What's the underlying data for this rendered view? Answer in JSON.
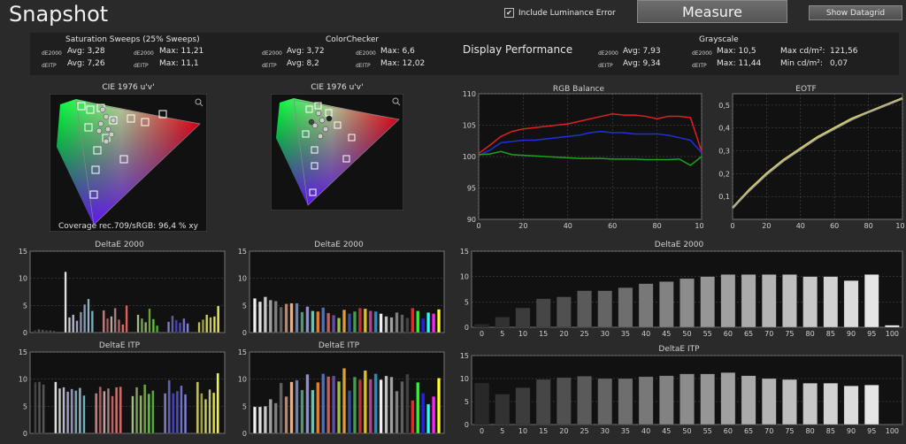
{
  "title": "Snapshot",
  "controls": {
    "luminance_checked": true,
    "luminance_label": "Include Luminance Error",
    "measure_label": "Measure",
    "datagrid_label": "Show Datagrid"
  },
  "stats": {
    "sat": {
      "title": "Saturation Sweeps (25% Sweeps)",
      "r1": {
        "m": "dE2000",
        "avg": "Avg: 3,28",
        "mm": "dE2000",
        "max": "Max: 11,21"
      },
      "r2": {
        "m": "dEITP",
        "avg": "Avg: 7,26",
        "mm": "dEITP",
        "max": "Max: 11,1"
      }
    },
    "cc": {
      "title": "ColorChecker",
      "r1": {
        "m": "dE2000",
        "avg": "Avg: 3,72",
        "mm": "dE2000",
        "max": "Max: 6,6"
      },
      "r2": {
        "m": "dEITP",
        "avg": "Avg: 8,2",
        "mm": "dEITP",
        "max": "Max: 12,02"
      }
    },
    "dp": "Display Performance",
    "gs": {
      "title": "Grayscale",
      "r1": {
        "m": "dE2000",
        "avg": "Avg: 7,93",
        "mm": "dE2000",
        "max": "Max: 10,5",
        "cd": "Max cd/m²:",
        "cdv": "121,56"
      },
      "r2": {
        "m": "dEITP",
        "avg": "Avg: 9,34",
        "mm": "dEITP",
        "max": "Max: 11,44",
        "cd": "Min cd/m²:",
        "cdv": "0,07"
      }
    }
  },
  "cie": {
    "title": "CIE 1976 u'v'",
    "coverage": "Coverage rec.709/sRGB:  96,4 % xy"
  },
  "chart_data": [
    {
      "type": "line",
      "title": "RGB Balance",
      "xlim": [
        0,
        100
      ],
      "ylim": [
        90,
        110
      ],
      "xticks": [
        "0",
        "20",
        "40",
        "60",
        "80",
        "100"
      ],
      "yticks": [
        "90",
        "95",
        "100",
        "105",
        "110"
      ],
      "x": [
        0,
        5,
        10,
        15,
        20,
        25,
        30,
        35,
        40,
        45,
        50,
        55,
        60,
        65,
        70,
        75,
        80,
        85,
        90,
        95,
        100
      ],
      "series": [
        {
          "color": "#e02020",
          "values": [
            100.5,
            101.8,
            103.2,
            104.0,
            104.4,
            104.6,
            104.8,
            105.0,
            105.2,
            105.6,
            106.0,
            106.4,
            106.8,
            106.6,
            106.6,
            106.4,
            106.0,
            106.4,
            106.4,
            106.2,
            100.8
          ]
        },
        {
          "color": "#2030e0",
          "values": [
            100.2,
            101.0,
            102.2,
            102.4,
            102.6,
            102.6,
            102.8,
            103.0,
            103.2,
            103.4,
            103.8,
            104.0,
            103.8,
            103.8,
            103.6,
            103.6,
            103.6,
            103.4,
            103.0,
            102.6,
            100.6
          ]
        },
        {
          "color": "#20a020",
          "values": [
            100.3,
            100.4,
            100.8,
            100.3,
            100.2,
            100.1,
            100.0,
            99.9,
            99.8,
            99.7,
            99.7,
            99.7,
            99.6,
            99.6,
            99.6,
            99.5,
            99.5,
            99.5,
            99.6,
            98.6,
            100.0
          ]
        }
      ]
    },
    {
      "type": "line",
      "title": "EOTF",
      "xlim": [
        0,
        100
      ],
      "ylim": [
        0,
        0.55
      ],
      "xticks": [
        "0",
        "20",
        "40",
        "60",
        "80",
        "100"
      ],
      "yticks": [
        "0,1",
        "0,2",
        "0,3",
        "0,4",
        "0,5"
      ],
      "x": [
        0,
        10,
        20,
        30,
        40,
        50,
        60,
        70,
        80,
        90,
        100
      ],
      "series": [
        {
          "color": "#d8d060",
          "values": [
            0.05,
            0.13,
            0.2,
            0.26,
            0.31,
            0.36,
            0.4,
            0.44,
            0.47,
            0.5,
            0.53
          ]
        },
        {
          "color": "#a0a0a0",
          "values": [
            0.05,
            0.125,
            0.195,
            0.255,
            0.305,
            0.355,
            0.395,
            0.435,
            0.468,
            0.498,
            0.527
          ]
        }
      ]
    },
    {
      "type": "bar",
      "title": "DeltaE 2000",
      "ylim": [
        0,
        15
      ],
      "yticks": [
        "0",
        "5",
        "10",
        "15"
      ],
      "groups": [
        {
          "colors": [
            "#444",
            "#555",
            "#555",
            "#555",
            "#555",
            "#555"
          ],
          "values": [
            0.4,
            0.6,
            0.5,
            0.4,
            0.4,
            0.3
          ]
        },
        {
          "colors": [
            "#e0e0e0",
            "#c8c8c8",
            "#b8b8d0",
            "#a0a0c0",
            "#9090b0",
            "#80a0b0",
            "#90b0c0",
            "#70b0c0"
          ],
          "values": [
            11.2,
            2.8,
            3.3,
            2.2,
            3.8,
            5.2,
            6.2,
            4.0
          ]
        },
        {
          "colors": [
            "#c08080",
            "#a06060",
            "#c0a0a0",
            "#a08080",
            "#c06060",
            "#d07070",
            "#e06060"
          ],
          "values": [
            4.1,
            2.6,
            3.0,
            4.5,
            2.4,
            1.5,
            5.0
          ]
        },
        {
          "colors": [
            "#a0c080",
            "#80a060",
            "#90b070",
            "#70a040",
            "#60c040",
            "#50b030"
          ],
          "values": [
            3.3,
            2.6,
            1.9,
            4.4,
            2.5,
            1.3
          ]
        },
        {
          "colors": [
            "#8080c0",
            "#6060a0",
            "#4040c0",
            "#5050b0",
            "#7070d0",
            "#8080e0"
          ],
          "values": [
            2.0,
            3.1,
            2.3,
            1.8,
            2.6,
            1.7
          ]
        },
        {
          "colors": [
            "#c0c060",
            "#a0a040",
            "#d0d060",
            "#c0c080",
            "#e0e040",
            "#f0f060"
          ],
          "values": [
            1.9,
            2.4,
            3.3,
            2.8,
            3.0,
            4.9
          ]
        }
      ]
    },
    {
      "type": "bar",
      "title": "DeltaE 2000",
      "ylim": [
        0,
        15
      ],
      "yticks": [
        "0",
        "5",
        "10",
        "15"
      ],
      "colors": [
        "#f0f0f0",
        "#e0e0e0",
        "#c8c8c8",
        "#a0a0a0",
        "#808080",
        "#606060",
        "#b08878",
        "#e0b090",
        "#7080a0",
        "#609070",
        "#9090c0",
        "#70c0b0",
        "#e08030",
        "#5070b0",
        "#c06060",
        "#6050a0",
        "#a0c040",
        "#e0a030",
        "#3050a0",
        "#40a050",
        "#c03030",
        "#e0c020",
        "#b04090",
        "#2090c0",
        "#f0f0f0",
        "#c0c0c0",
        "#a0a0a0",
        "#808080",
        "#606060",
        "#404040",
        "#ff2020",
        "#20ff20",
        "#2020ff",
        "#20ffff",
        "#ff20ff",
        "#ffff20"
      ],
      "values": [
        6.3,
        5.7,
        6.6,
        6.0,
        5.8,
        4.7,
        5.3,
        5.4,
        5.4,
        3.8,
        4.8,
        4.0,
        3.9,
        4.6,
        3.6,
        3.2,
        2.7,
        4.2,
        3.5,
        3.9,
        4.5,
        4.4,
        4.0,
        3.9,
        3.5,
        3.0,
        2.8,
        3.7,
        3.3,
        2.7,
        4.5,
        4.0,
        2.6,
        3.7,
        3.5,
        4.3
      ]
    },
    {
      "type": "bar",
      "title": "DeltaE 2000",
      "ylim": [
        0,
        15
      ],
      "yticks": [
        "0",
        "5",
        "10",
        "15"
      ],
      "categories": [
        "0",
        "5",
        "10",
        "15",
        "20",
        "25",
        "30",
        "35",
        "40",
        "45",
        "50",
        "55",
        "60",
        "65",
        "70",
        "75",
        "80",
        "85",
        "90",
        "95",
        "100"
      ],
      "values": [
        0.6,
        2.0,
        3.8,
        5.6,
        6.0,
        7.2,
        7.2,
        7.8,
        8.6,
        9.0,
        9.6,
        10.0,
        10.4,
        10.4,
        10.4,
        10.4,
        10.0,
        10.0,
        9.2,
        10.4,
        0.4
      ]
    },
    {
      "type": "bar",
      "title": "DeltaE ITP",
      "ylim": [
        0,
        15
      ],
      "yticks": [
        "0",
        "5",
        "10",
        "15"
      ],
      "groups": [
        {
          "colors": [
            "#444",
            "#555",
            "#555"
          ],
          "values": [
            9.4,
            9.5,
            9.0
          ]
        },
        {
          "colors": [
            "#e0e0e0",
            "#c8c8c8",
            "#b8b8d0",
            "#a0a0c0",
            "#9090b0",
            "#80a0b0",
            "#90b0c0",
            "#70b0c0"
          ],
          "values": [
            9.5,
            8.3,
            8.5,
            7.7,
            8.2,
            7.9,
            8.4,
            7.0
          ]
        },
        {
          "colors": [
            "#c08080",
            "#a06060",
            "#c0a0a0",
            "#a08080",
            "#c06060",
            "#d07070",
            "#e06060"
          ],
          "values": [
            7.4,
            8.6,
            7.8,
            8.3,
            6.9,
            8.5,
            8.6
          ]
        },
        {
          "colors": [
            "#a0c080",
            "#80a060",
            "#90b070",
            "#70a040",
            "#60c040",
            "#50b030"
          ],
          "values": [
            6.9,
            8.5,
            7.0,
            9.0,
            7.3,
            7.9
          ]
        },
        {
          "colors": [
            "#8080c0",
            "#6060a0",
            "#4040c0",
            "#5050b0",
            "#7070d0",
            "#8080e0"
          ],
          "values": [
            7.4,
            9.8,
            7.4,
            7.8,
            8.8,
            7.2
          ]
        },
        {
          "colors": [
            "#c0c060",
            "#a0a040",
            "#d0d060",
            "#c0c080",
            "#e0e040",
            "#f0f060"
          ],
          "values": [
            9.5,
            7.4,
            6.3,
            8.1,
            7.5,
            11.1
          ]
        }
      ]
    },
    {
      "type": "bar",
      "title": "DeltaE ITP",
      "ylim": [
        0,
        15
      ],
      "yticks": [
        "0",
        "5",
        "10",
        "15"
      ],
      "colors": [
        "#f0f0f0",
        "#e0e0e0",
        "#c8c8c8",
        "#a0a0a0",
        "#808080",
        "#606060",
        "#b08878",
        "#e0b090",
        "#7080a0",
        "#609070",
        "#9090c0",
        "#70c0b0",
        "#e08030",
        "#5070b0",
        "#c06060",
        "#6050a0",
        "#a0c040",
        "#e0a030",
        "#3050a0",
        "#40a050",
        "#c03030",
        "#e0c020",
        "#b04090",
        "#2090c0",
        "#f0f0f0",
        "#c0c0c0",
        "#a0a0a0",
        "#808080",
        "#606060",
        "#404040",
        "#ff2020",
        "#20ff20",
        "#2020ff",
        "#20ffff",
        "#ff20ff",
        "#ffff20"
      ],
      "values": [
        4.9,
        4.9,
        5.0,
        6.3,
        5.6,
        9.3,
        6.8,
        9.5,
        9.8,
        8.0,
        10.9,
        8.0,
        9.4,
        11.0,
        10.5,
        10.6,
        9.6,
        12.0,
        7.9,
        10.4,
        9.9,
        11.6,
        10.0,
        11.0,
        9.9,
        10.6,
        10.4,
        7.8,
        9.6,
        10.9,
        6.1,
        9.4,
        7.4,
        5.4,
        6.8,
        10.2
      ]
    },
    {
      "type": "bar",
      "title": "DeltaE ITP",
      "ylim": [
        0,
        15
      ],
      "yticks": [
        "0",
        "5",
        "10",
        "15"
      ],
      "categories": [
        "0",
        "5",
        "10",
        "15",
        "20",
        "25",
        "30",
        "35",
        "40",
        "45",
        "50",
        "55",
        "60",
        "65",
        "70",
        "75",
        "80",
        "85",
        "90",
        "95",
        "100"
      ],
      "values": [
        9.0,
        6.6,
        8.0,
        9.8,
        10.2,
        10.5,
        10.0,
        10.0,
        10.4,
        10.6,
        11.0,
        11.0,
        11.3,
        10.6,
        10.0,
        9.8,
        9.0,
        9.0,
        8.4,
        8.6,
        0.0
      ]
    }
  ]
}
